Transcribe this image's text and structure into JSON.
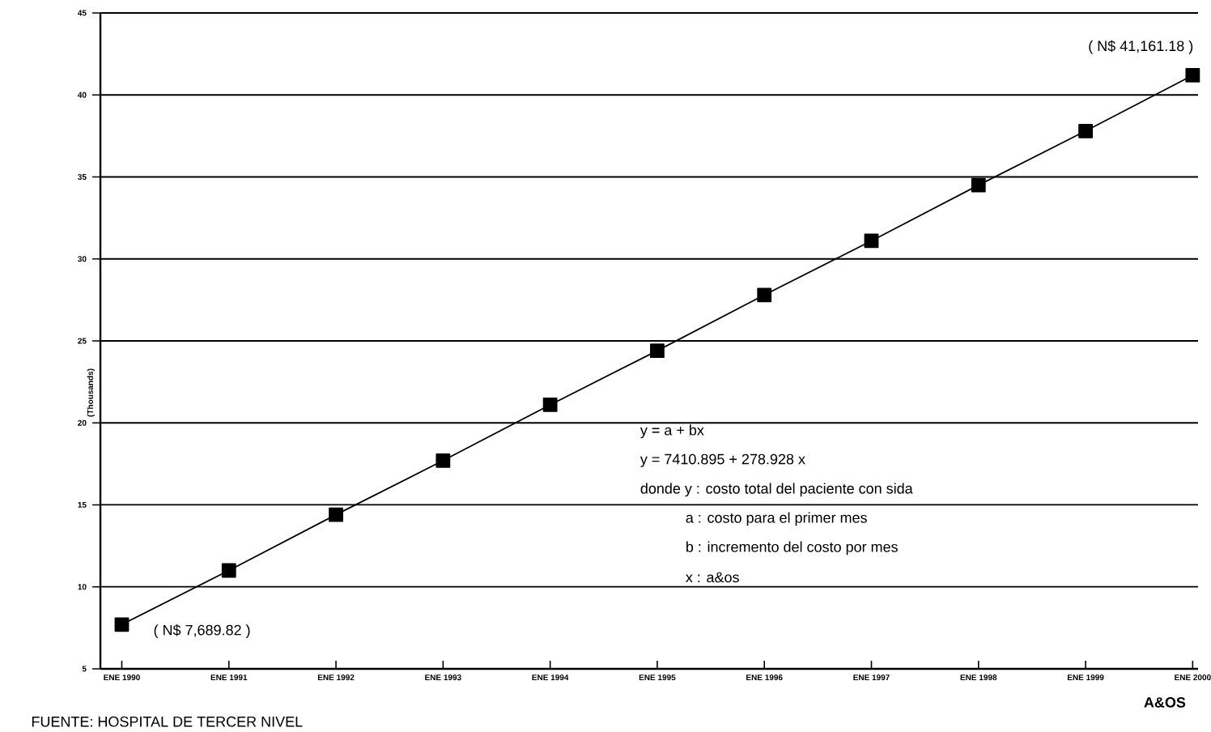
{
  "chart_data": {
    "type": "line",
    "categories": [
      "ENE 1990",
      "ENE 1991",
      "ENE 1992",
      "ENE 1993",
      "ENE 1994",
      "ENE 1995",
      "ENE 1996",
      "ENE 1997",
      "ENE 1998",
      "ENE 1999",
      "ENE 2000"
    ],
    "series": [
      {
        "color": "#000000",
        "values": [
          7.7,
          11.0,
          14.4,
          17.7,
          21.1,
          24.4,
          27.8,
          31.1,
          34.5,
          37.8,
          41.2
        ]
      }
    ],
    "ylim": [
      5,
      45
    ],
    "yticks": [
      5,
      10,
      15,
      20,
      25,
      30,
      35,
      40,
      45
    ],
    "ylabel": "(Thousands)",
    "xlabel": "A&OS",
    "grid": "y",
    "marker": "square",
    "line_style": "solid",
    "annotations": [
      "y = a + bx",
      "y = 7410.895 + 278.928 x",
      "donde y : costo total del paciente con sida",
      "a : costo para el primer mes",
      "b : incremento del costo por mes",
      "x : a&os",
      {
        "text": "( N$ 7,689.82 )",
        "x": "ENE 1990",
        "y": 7.69
      },
      {
        "text": "( N$ 41,161.18 )",
        "x": "ENE 2000",
        "y": 41.16
      },
      "FUENTE: HOSPITAL DE TERCER NIVEL"
    ]
  }
}
